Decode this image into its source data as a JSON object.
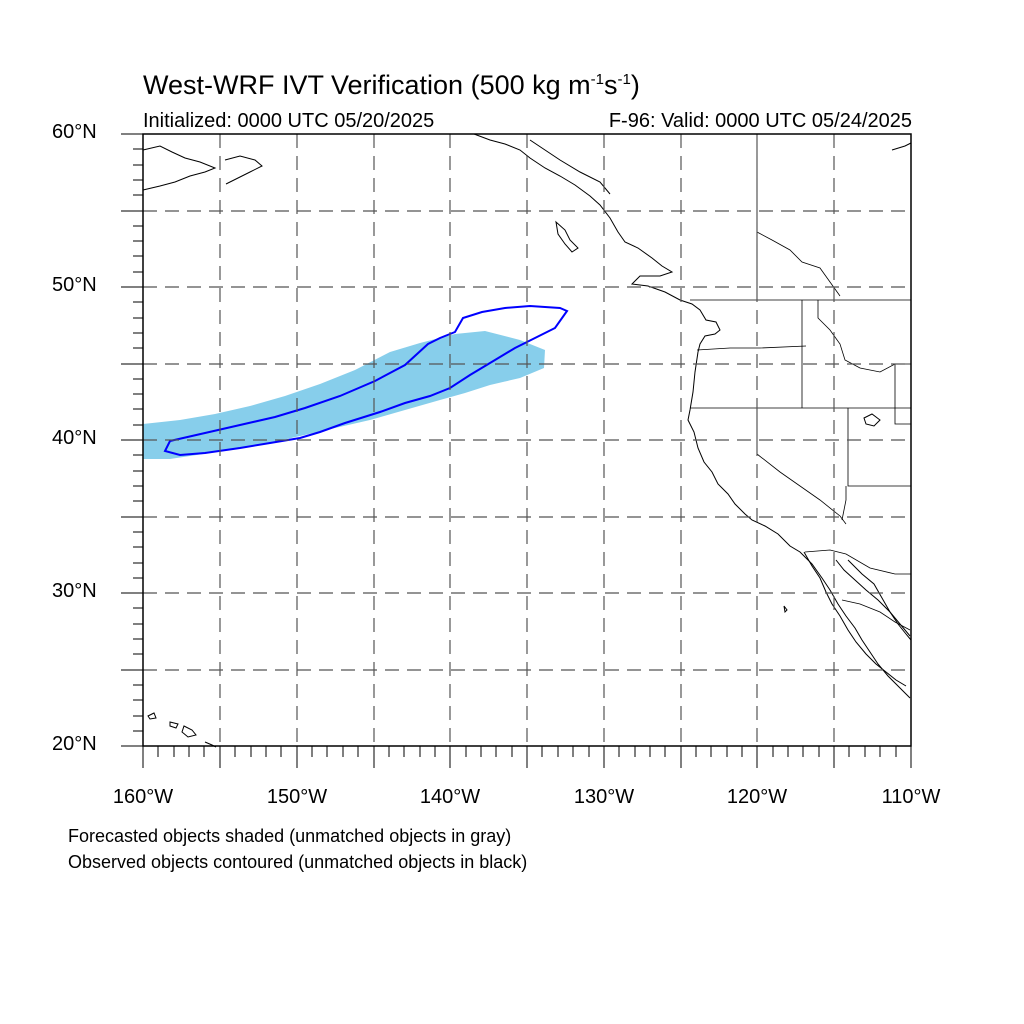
{
  "title": {
    "prefix": "West-WRF IVT Verification (500 kg m",
    "exp1": "-1",
    "mid": "s",
    "exp2": "-1",
    "suffix": ")"
  },
  "initialized": "Initialized: 0000 UTC 05/20/2025",
  "valid": "F-96: Valid: 0000 UTC 05/24/2025",
  "lat_labels": [
    "60°N",
    "50°N",
    "40°N",
    "30°N",
    "20°N"
  ],
  "lon_labels": [
    "160°W",
    "150°W",
    "140°W",
    "130°W",
    "120°W",
    "110°W"
  ],
  "notes": [
    "Forecasted objects shaded (unmatched objects in gray)",
    "Observed objects contoured (unmatched objects in black)"
  ],
  "colors": {
    "forecast_fill": "#87ceeb",
    "observed_contour": "#0000ff",
    "grid": "#555555",
    "coastline": "#000000"
  },
  "map": {
    "lon_range": [
      -160,
      -110
    ],
    "lat_range": [
      20,
      60
    ],
    "grid_lon_step": 5,
    "grid_lat_step": 5
  }
}
